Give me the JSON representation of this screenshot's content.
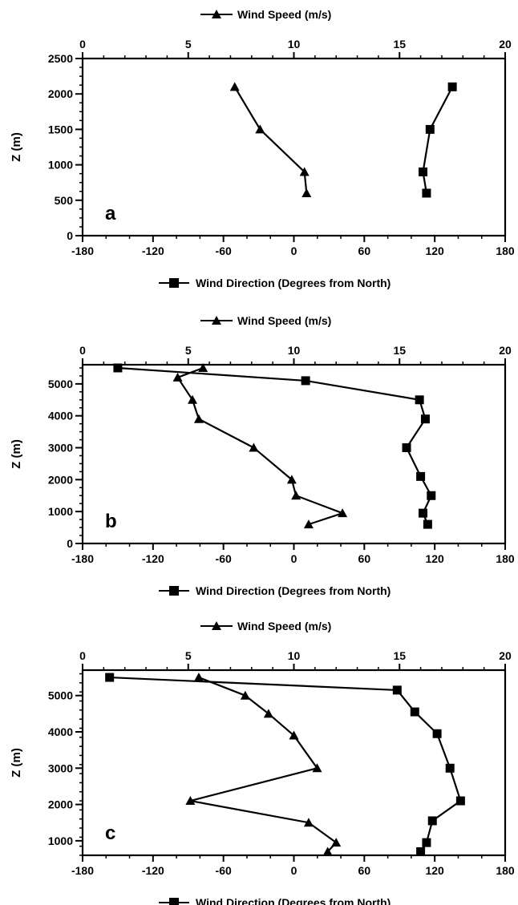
{
  "colors": {
    "ink": "#000000",
    "background": "#ffffff"
  },
  "chart_data": [
    {
      "type": "line",
      "panel_label": "a",
      "top_axis": {
        "label": "Wind Speed (m/s)",
        "range": [
          0,
          20
        ],
        "ticks": [
          "0",
          "5",
          "10",
          "15",
          "20"
        ]
      },
      "bottom_axis": {
        "label": "Wind Direction (Degrees from North)",
        "range": [
          -180,
          180
        ],
        "ticks": [
          "-180",
          "-120",
          "-60",
          "0",
          "60",
          "120",
          "180"
        ]
      },
      "y_axis": {
        "label": "Z (m)",
        "range": [
          0,
          2500
        ],
        "ticks": [
          "0",
          "500",
          "1000",
          "1500",
          "2000",
          "2500"
        ]
      },
      "grid": false,
      "series": [
        {
          "name": "Wind Speed (m/s)",
          "marker": "triangle",
          "axis": "top",
          "points": [
            [
              7.2,
              2100
            ],
            [
              8.4,
              1500
            ],
            [
              10.5,
              900
            ],
            [
              10.6,
              600
            ]
          ]
        },
        {
          "name": "Wind Direction (Degrees from North)",
          "marker": "square",
          "axis": "bottom",
          "points": [
            [
              135,
              2100
            ],
            [
              116,
              1500
            ],
            [
              110,
              900
            ],
            [
              113,
              600
            ]
          ]
        }
      ]
    },
    {
      "type": "line",
      "panel_label": "b",
      "top_axis": {
        "label": "Wind Speed (m/s)",
        "range": [
          0,
          20
        ],
        "ticks": [
          "0",
          "5",
          "10",
          "15",
          "20"
        ]
      },
      "bottom_axis": {
        "label": "Wind Direction (Degrees from North)",
        "range": [
          -180,
          180
        ],
        "ticks": [
          "-180",
          "-120",
          "-60",
          "0",
          "60",
          "120",
          "180"
        ]
      },
      "y_axis": {
        "label": "Z (m)",
        "range": [
          0,
          5600
        ],
        "ticks": [
          "0",
          "1000",
          "2000",
          "3000",
          "4000",
          "5000"
        ]
      },
      "grid": false,
      "series": [
        {
          "name": "Wind Speed (m/s)",
          "marker": "triangle",
          "axis": "top",
          "points": [
            [
              5.7,
              5500
            ],
            [
              4.5,
              5200
            ],
            [
              5.2,
              4500
            ],
            [
              5.5,
              3900
            ],
            [
              8.1,
              3000
            ],
            [
              9.9,
              2000
            ],
            [
              10.1,
              1500
            ],
            [
              12.3,
              950
            ],
            [
              10.7,
              600
            ]
          ]
        },
        {
          "name": "Wind Direction (Degrees from North)",
          "marker": "square",
          "axis": "bottom",
          "points": [
            [
              -150,
              5500
            ],
            [
              10,
              5100
            ],
            [
              107,
              4500
            ],
            [
              112,
              3900
            ],
            [
              96,
              3000
            ],
            [
              108,
              2100
            ],
            [
              117,
              1500
            ],
            [
              110,
              950
            ],
            [
              114,
              600
            ]
          ]
        }
      ]
    },
    {
      "type": "line",
      "panel_label": "c",
      "top_axis": {
        "label": "Wind Speed (m/s)",
        "range": [
          0,
          20
        ],
        "ticks": [
          "0",
          "5",
          "10",
          "15",
          "20"
        ]
      },
      "bottom_axis": {
        "label": "Wind Direction (Degrees from North)",
        "range": [
          -180,
          180
        ],
        "ticks": [
          "-180",
          "-120",
          "-60",
          "0",
          "60",
          "120",
          "180"
        ]
      },
      "y_axis": {
        "label": "Z (m)",
        "range": [
          600,
          5700
        ],
        "ticks": [
          "1000",
          "2000",
          "3000",
          "4000",
          "5000"
        ]
      },
      "grid": false,
      "series": [
        {
          "name": "Wind Speed (m/s)",
          "marker": "triangle",
          "axis": "top",
          "points": [
            [
              5.5,
              5500
            ],
            [
              7.7,
              5000
            ],
            [
              8.8,
              4500
            ],
            [
              10.0,
              3900
            ],
            [
              11.1,
              3000
            ],
            [
              5.1,
              2100
            ],
            [
              10.7,
              1500
            ],
            [
              12.0,
              950
            ],
            [
              11.6,
              700
            ]
          ]
        },
        {
          "name": "Wind Direction (Degrees from North)",
          "marker": "square",
          "axis": "bottom",
          "points": [
            [
              -157,
              5500
            ],
            [
              88,
              5150
            ],
            [
              103,
              4550
            ],
            [
              122,
              3950
            ],
            [
              133,
              3000
            ],
            [
              142,
              2100
            ],
            [
              118,
              1550
            ],
            [
              113,
              950
            ],
            [
              108,
              700
            ]
          ]
        }
      ]
    }
  ]
}
